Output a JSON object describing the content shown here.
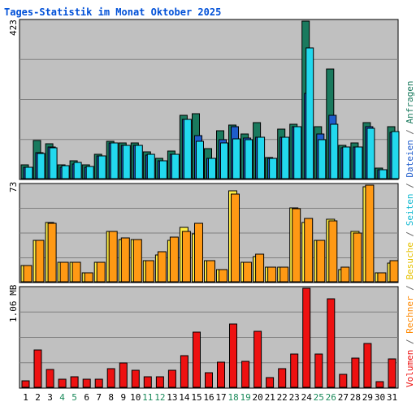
{
  "chart_data": {
    "type": "bar",
    "title": "Tages-Statistik im Monat Oktober 2025",
    "days": [
      "1",
      "2",
      "3",
      "4",
      "5",
      "6",
      "7",
      "8",
      "9",
      "10",
      "11",
      "12",
      "13",
      "14",
      "15",
      "16",
      "17",
      "18",
      "19",
      "20",
      "21",
      "22",
      "23",
      "24",
      "25",
      "26",
      "27",
      "28",
      "29",
      "30",
      "31"
    ],
    "weekend_days": [
      "4",
      "5",
      "11",
      "12",
      "18",
      "19",
      "25",
      "26"
    ],
    "y_axis_max_labels": {
      "top": "423",
      "middle": "73",
      "bottom": "1.06 MB"
    },
    "right_label": {
      "bottom": "Volumen",
      "sep1": " / ",
      "rechner": "Rechner",
      "sep2": " / ",
      "besuche": "Besuche",
      "sep3": " / ",
      "seiten": "Seiten",
      "sep4": " / ",
      "dateien": "Dateien",
      "sep5": " / ",
      "anfragen": "Anfragen"
    },
    "panels": [
      {
        "name": "Anfragen / Dateien / Seiten",
        "ymax": 423,
        "series": [
          {
            "name": "Anfragen",
            "color": "#1a7a5e",
            "values": [
              37,
              102,
              94,
              37,
              48,
              37,
              65,
              101,
              95,
              95,
              71,
              55,
              75,
              169,
              174,
              80,
              128,
              143,
              119,
              150,
              57,
              132,
              146,
              423,
              139,
              295,
              90,
              95,
              150,
              28,
              140
            ]
          },
          {
            "name": "Dateien",
            "color": "#1f5dcc",
            "values": [
              30,
              70,
              85,
              30,
              40,
              30,
              60,
              95,
              90,
              90,
              64,
              48,
              65,
              160,
              116,
              55,
              105,
              140,
              108,
              112,
              54,
              112,
              140,
              230,
              121,
              170,
              83,
              86,
              140,
              25,
              125
            ]
          },
          {
            "name": "Seiten",
            "color": "#22d8ee",
            "values": [
              30,
              67,
              83,
              34,
              44,
              33,
              62,
              96,
              90,
              90,
              65,
              48,
              65,
              160,
              100,
              54,
              96,
              107,
              105,
              112,
              54,
              112,
              140,
              352,
              104,
              147,
              85,
              86,
              136,
              24,
              126
            ]
          }
        ]
      },
      {
        "name": "Besuche / Rechner",
        "ymax": 73,
        "series": [
          {
            "name": "Besuche",
            "color": "#ffee44",
            "values": [
              12,
              31,
              45,
              15,
              15,
              7,
              15,
              38,
              32,
              32,
              16,
              20,
              31,
              41,
              36,
              16,
              9,
              69,
              15,
              19,
              11,
              11,
              56,
              45,
              31,
              47,
              9,
              38,
              72,
              7,
              14
            ]
          },
          {
            "name": "Rechner",
            "color": "#ff9914",
            "values": [
              12,
              31,
              44,
              15,
              15,
              7,
              15,
              38,
              33,
              32,
              16,
              23,
              34,
              38,
              44,
              16,
              9,
              66,
              15,
              21,
              11,
              11,
              55,
              48,
              31,
              46,
              11,
              37,
              73,
              7,
              16
            ]
          }
        ]
      },
      {
        "name": "Volumen",
        "ymax": 1.06,
        "unit": "MB",
        "series": [
          {
            "name": "Volumen",
            "color": "#ee1111",
            "values": [
              0.07,
              0.4,
              0.19,
              0.09,
              0.11,
              0.09,
              0.09,
              0.2,
              0.26,
              0.18,
              0.11,
              0.11,
              0.18,
              0.34,
              0.59,
              0.16,
              0.27,
              0.68,
              0.28,
              0.6,
              0.1,
              0.2,
              0.36,
              1.06,
              0.36,
              0.95,
              0.14,
              0.31,
              0.47,
              0.06,
              0.3
            ]
          }
        ]
      }
    ]
  }
}
